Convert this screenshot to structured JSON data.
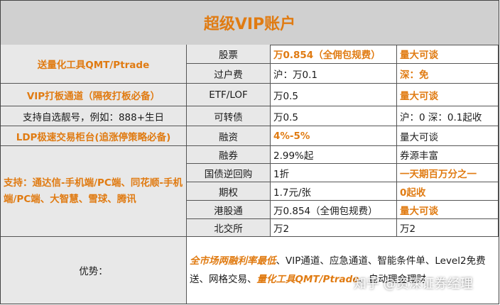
{
  "title": "超级VIP账户",
  "left_rows": [
    {
      "text": "送量化工具QMT/Ptrade"
    },
    {
      "text": "VIP打板通道（隔夜打板必备）"
    },
    {
      "text": "支持自选靓号，例如：888+生日"
    },
    {
      "text": "LDP极速交易柜台(追涨停策略必备)"
    },
    {
      "text": "支持：通达信-手机端/PC端、同花顺-手机端/PC端、大智慧、雪球、腾讯"
    }
  ],
  "rows": [
    {
      "name": "股票",
      "rate": "万0.854（全佣包规费）",
      "note": "量大可谈"
    },
    {
      "name": "过户费",
      "rate": "沪：万0.1",
      "note": "深：免"
    },
    {
      "name": "ETF/LOF",
      "rate": "万0.5",
      "note": "量大可谈"
    },
    {
      "name": "可转债",
      "rate": "万0.5",
      "note": "沪：0 深：0.1起收"
    },
    {
      "name": "融资",
      "rate": "4%-5%",
      "note": "量大可谈"
    },
    {
      "name": "融券",
      "rate": "2.99%起",
      "note": "券源丰富"
    },
    {
      "name": "国债逆回购",
      "rate": "1折",
      "note": "一天期百万分之一"
    },
    {
      "name": "期权",
      "rate": "1.7元/张",
      "note": "0起收"
    },
    {
      "name": "港股通",
      "rate": "万0.854（全佣包规费）",
      "note": "量大可谈"
    },
    {
      "name": "北交所",
      "rate": "万2",
      "note": "万2"
    }
  ],
  "advantages": {
    "label": "优势：",
    "part1": "全市场两融利率最低",
    "part2": "、VIP通道、应急通道、智能条件单、Level2免费送、网格交易、",
    "part3": "量化工具QMT/Ptrade",
    "part4": "、自动理金理财"
  },
  "watermark": "知乎 @资深证券经理"
}
